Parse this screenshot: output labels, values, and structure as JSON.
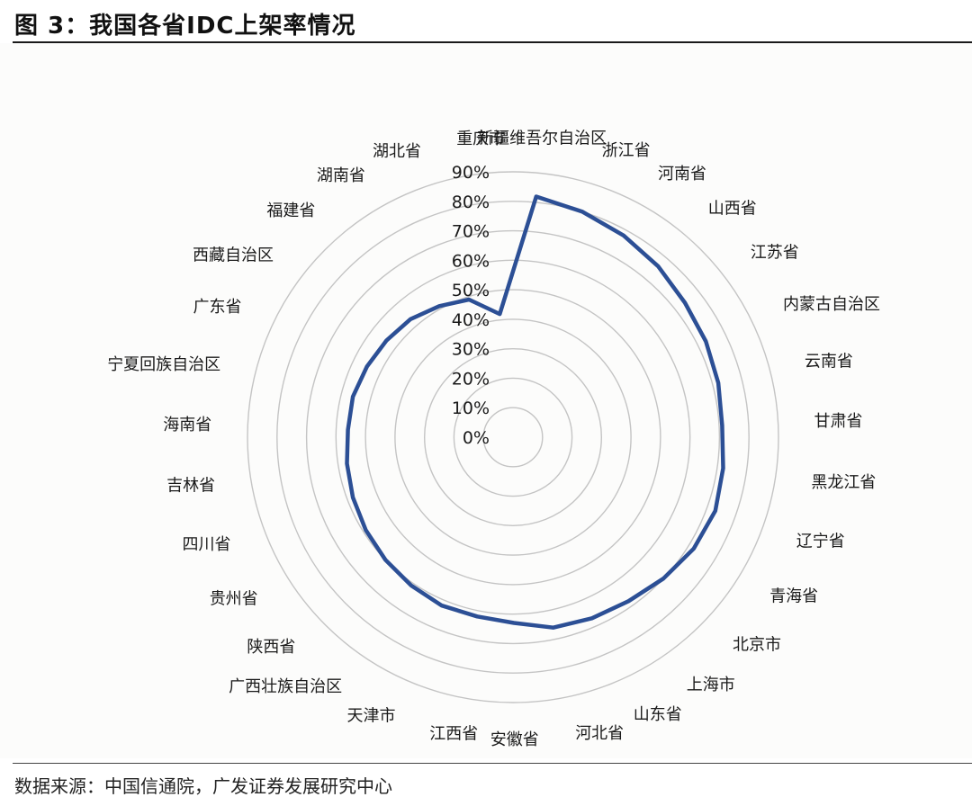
{
  "figure": {
    "title": "图 3：我国各省IDC上架率情况",
    "source": "数据来源：中国信通院，广发证券发展研究中心"
  },
  "colors": {
    "series_line": "#2c4f95",
    "rings": "#c4c4c4",
    "text": "#1a1a1a",
    "background": "#fcfcfb"
  },
  "chart_data": {
    "type": "radar",
    "title": "",
    "radial_axis": {
      "ylim": [
        0,
        90
      ],
      "ticks": [
        "0%",
        "10%",
        "20%",
        "30%",
        "40%",
        "50%",
        "60%",
        "70%",
        "80%",
        "90%"
      ],
      "grid": true,
      "unit": "%"
    },
    "categories": [
      "新疆维吾尔自治区",
      "浙江省",
      "河南省",
      "山西省",
      "江苏省",
      "内蒙古自治区",
      "云南省",
      "甘肃省",
      "黑龙江省",
      "辽宁省",
      "青海省",
      "北京市",
      "上海市",
      "山东省",
      "河北省",
      "安徽省",
      "江西省",
      "天津市",
      "广西壮族自治区",
      "陕西省",
      "贵州省",
      "四川省",
      "吉林省",
      "海南省",
      "宁夏回族自治区",
      "广东省",
      "西藏自治区",
      "福建省",
      "湖南省",
      "湖北省",
      "重庆市"
    ],
    "series": [
      {
        "values": [
          82,
          80,
          78,
          76,
          74,
          73,
          72,
          71,
          72,
          73,
          72,
          70,
          68,
          67,
          66,
          63,
          62,
          62,
          61,
          60,
          59,
          58,
          57,
          56,
          56,
          55,
          54,
          53,
          51,
          49,
          42
        ]
      }
    ]
  }
}
